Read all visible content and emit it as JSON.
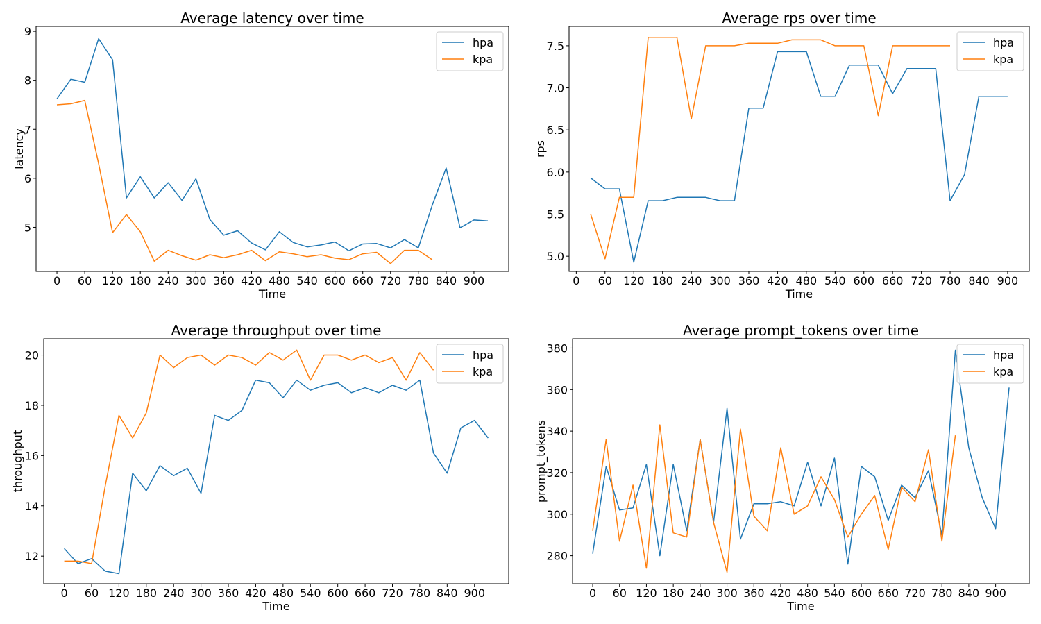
{
  "colors": {
    "hpa": "#1f77b4",
    "kpa": "#ff7f0e"
  },
  "legend": [
    "hpa",
    "kpa"
  ],
  "chart_data": [
    {
      "type": "line",
      "title": "Average latency over time",
      "xlabel": "Time",
      "ylabel": "latency",
      "xticks": [
        0,
        60,
        120,
        180,
        240,
        300,
        360,
        420,
        480,
        540,
        600,
        660,
        720,
        780,
        840,
        900
      ],
      "yticks": [
        5,
        6,
        7,
        8,
        9
      ],
      "xlim": [
        -45,
        975
      ],
      "ylim": [
        4.1,
        9.1
      ],
      "legend_loc": "upper right",
      "series": [
        {
          "name": "hpa",
          "x": [
            0,
            30,
            60,
            90,
            120,
            150,
            180,
            210,
            240,
            270,
            300,
            330,
            360,
            390,
            420,
            450,
            480,
            510,
            540,
            570,
            600,
            630,
            660,
            690,
            720,
            750,
            780,
            810,
            840,
            870,
            900,
            930
          ],
          "values": [
            7.62,
            8.02,
            7.96,
            8.85,
            8.42,
            5.6,
            6.03,
            5.6,
            5.91,
            5.55,
            5.99,
            5.16,
            4.84,
            4.93,
            4.68,
            4.54,
            4.91,
            4.69,
            4.6,
            4.64,
            4.7,
            4.52,
            4.66,
            4.67,
            4.58,
            4.75,
            4.58,
            5.45,
            6.21,
            4.99,
            5.15,
            5.13
          ]
        },
        {
          "name": "kpa",
          "x": [
            0,
            30,
            60,
            90,
            120,
            150,
            180,
            210,
            240,
            270,
            300,
            330,
            360,
            390,
            420,
            450,
            480,
            510,
            540,
            570,
            600,
            630,
            660,
            690,
            720,
            750,
            780,
            810
          ],
          "values": [
            7.5,
            7.52,
            7.59,
            6.3,
            4.89,
            5.26,
            4.91,
            4.31,
            4.53,
            4.42,
            4.33,
            4.44,
            4.38,
            4.44,
            4.53,
            4.32,
            4.5,
            4.46,
            4.4,
            4.44,
            4.37,
            4.34,
            4.46,
            4.49,
            4.26,
            4.53,
            4.53,
            4.34
          ]
        }
      ]
    },
    {
      "type": "line",
      "title": "Average rps over time",
      "xlabel": "Time",
      "ylabel": "rps",
      "xticks": [
        0,
        60,
        120,
        180,
        240,
        300,
        360,
        420,
        480,
        540,
        600,
        660,
        720,
        780,
        840,
        900
      ],
      "yticks": [
        5.0,
        5.5,
        6.0,
        6.5,
        7.0,
        7.5
      ],
      "ytick_labels": [
        "5.0",
        "5.5",
        "6.0",
        "6.5",
        "7.0",
        "7.5"
      ],
      "xlim": [
        -15,
        945
      ],
      "ylim": [
        4.82,
        7.73
      ],
      "legend_loc": "upper right",
      "series": [
        {
          "name": "hpa",
          "x": [
            30,
            60,
            90,
            120,
            150,
            180,
            210,
            240,
            270,
            300,
            330,
            360,
            390,
            420,
            450,
            480,
            510,
            540,
            570,
            600,
            630,
            660,
            690,
            720,
            750,
            780,
            810,
            840,
            870,
            900
          ],
          "values": [
            5.93,
            5.8,
            5.8,
            4.93,
            5.66,
            5.66,
            5.7,
            5.7,
            5.7,
            5.66,
            5.66,
            6.76,
            6.76,
            7.43,
            7.43,
            7.43,
            6.9,
            6.9,
            7.27,
            7.27,
            7.27,
            6.93,
            7.23,
            7.23,
            7.23,
            5.66,
            5.97,
            6.9,
            6.9,
            6.9
          ]
        },
        {
          "name": "kpa",
          "x": [
            30,
            60,
            90,
            120,
            150,
            180,
            210,
            240,
            270,
            300,
            330,
            360,
            390,
            420,
            450,
            480,
            510,
            540,
            570,
            600,
            630,
            660,
            690,
            720,
            750,
            780
          ],
          "values": [
            5.5,
            4.97,
            5.7,
            5.7,
            7.6,
            7.6,
            7.6,
            6.63,
            7.5,
            7.5,
            7.5,
            7.53,
            7.53,
            7.53,
            7.57,
            7.57,
            7.57,
            7.5,
            7.5,
            7.5,
            6.67,
            7.5,
            7.5,
            7.5,
            7.5,
            7.5
          ]
        }
      ]
    },
    {
      "type": "line",
      "title": "Average throughput over time",
      "xlabel": "Time",
      "ylabel": "throughput",
      "xticks": [
        0,
        60,
        120,
        180,
        240,
        300,
        360,
        420,
        480,
        540,
        600,
        660,
        720,
        780,
        840,
        900
      ],
      "yticks": [
        12,
        14,
        16,
        18,
        20
      ],
      "xlim": [
        -45,
        975
      ],
      "ylim": [
        10.9,
        20.65
      ],
      "legend_loc": "upper right",
      "series": [
        {
          "name": "hpa",
          "x": [
            0,
            30,
            60,
            90,
            120,
            150,
            180,
            210,
            240,
            270,
            300,
            330,
            360,
            390,
            420,
            450,
            480,
            510,
            540,
            570,
            600,
            630,
            660,
            690,
            720,
            750,
            780,
            810,
            840,
            870,
            900,
            930
          ],
          "values": [
            12.3,
            11.7,
            11.9,
            11.4,
            11.3,
            15.3,
            14.6,
            15.6,
            15.2,
            15.5,
            14.5,
            17.6,
            17.4,
            17.8,
            19.0,
            18.9,
            18.3,
            19.0,
            18.6,
            18.8,
            18.9,
            18.5,
            18.7,
            18.5,
            18.8,
            18.6,
            19.0,
            16.1,
            15.3,
            17.1,
            17.4,
            16.7
          ]
        },
        {
          "name": "kpa",
          "x": [
            0,
            30,
            60,
            90,
            120,
            150,
            180,
            210,
            240,
            270,
            300,
            330,
            360,
            390,
            420,
            450,
            480,
            510,
            540,
            570,
            600,
            630,
            660,
            690,
            720,
            750,
            780,
            810
          ],
          "values": [
            11.8,
            11.8,
            11.7,
            14.8,
            17.6,
            16.7,
            17.7,
            20.0,
            19.5,
            19.9,
            20.0,
            19.6,
            20.0,
            19.9,
            19.6,
            20.1,
            19.8,
            20.2,
            19.0,
            20.0,
            20.0,
            19.8,
            20.0,
            19.7,
            19.9,
            19.0,
            20.1,
            19.4
          ]
        }
      ]
    },
    {
      "type": "line",
      "title": "Average prompt_tokens over time",
      "xlabel": "Time",
      "ylabel": "prompt_tokens",
      "xticks": [
        0,
        60,
        120,
        180,
        240,
        300,
        360,
        420,
        480,
        540,
        600,
        660,
        720,
        780,
        840,
        900
      ],
      "yticks": [
        280,
        300,
        320,
        340,
        360,
        380
      ],
      "xlim": [
        -45,
        975
      ],
      "ylim": [
        266.5,
        384.5
      ],
      "legend_loc": "upper right",
      "series": [
        {
          "name": "hpa",
          "x": [
            0,
            30,
            60,
            90,
            120,
            150,
            180,
            210,
            240,
            270,
            300,
            330,
            360,
            390,
            420,
            450,
            480,
            510,
            540,
            570,
            600,
            630,
            660,
            690,
            720,
            750,
            780,
            810,
            840,
            870,
            900,
            930
          ],
          "values": [
            281,
            323,
            302,
            303,
            324,
            280,
            324,
            292,
            336,
            296,
            351,
            288,
            305,
            305,
            306,
            304,
            325,
            304,
            327,
            276,
            323,
            318,
            297,
            314,
            308,
            321,
            290,
            379,
            332,
            308,
            293,
            361
          ]
        },
        {
          "name": "kpa",
          "x": [
            0,
            30,
            60,
            90,
            120,
            150,
            180,
            210,
            240,
            270,
            300,
            330,
            360,
            390,
            420,
            450,
            480,
            510,
            540,
            570,
            600,
            630,
            660,
            690,
            720,
            750,
            780,
            810
          ],
          "values": [
            292,
            336,
            287,
            314,
            274,
            343,
            291,
            289,
            336,
            296,
            272,
            341,
            299,
            292,
            332,
            300,
            304,
            318,
            307,
            289,
            300,
            309,
            283,
            313,
            306,
            331,
            287,
            338
          ]
        }
      ]
    }
  ]
}
